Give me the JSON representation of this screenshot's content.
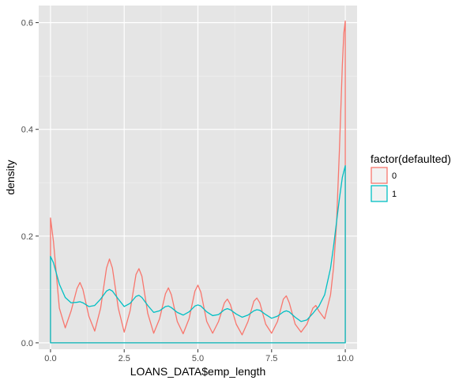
{
  "chart_data": {
    "type": "line",
    "chart_kind": "density",
    "title": "",
    "xlabel": "LOANS_DATA$emp_length",
    "ylabel": "density",
    "xlim": [
      -0.4,
      10.4
    ],
    "ylim": [
      -0.012,
      0.632
    ],
    "x_ticks": [
      0.0,
      2.5,
      5.0,
      7.5,
      10.0
    ],
    "x_tick_labels": [
      "0.0",
      "2.5",
      "5.0",
      "7.5",
      "10.0"
    ],
    "y_ticks": [
      0.0,
      0.2,
      0.4,
      0.6
    ],
    "y_tick_labels": [
      "0.0",
      "0.2",
      "0.4",
      "0.6"
    ],
    "grid": true,
    "panel_background": "#e5e5e5",
    "legend": {
      "title": "factor(defaulted)",
      "position": "right",
      "entries": [
        "0",
        "1"
      ]
    },
    "series": [
      {
        "name": "0",
        "color": "#f8766d",
        "x": [
          0.0,
          0.1,
          0.3,
          0.5,
          0.7,
          0.9,
          1.0,
          1.1,
          1.3,
          1.5,
          1.7,
          1.9,
          2.0,
          2.1,
          2.3,
          2.5,
          2.7,
          2.9,
          3.0,
          3.1,
          3.3,
          3.5,
          3.7,
          3.9,
          4.0,
          4.1,
          4.3,
          4.5,
          4.7,
          4.9,
          5.0,
          5.1,
          5.3,
          5.5,
          5.7,
          5.9,
          6.0,
          6.1,
          6.3,
          6.5,
          6.7,
          6.9,
          7.0,
          7.1,
          7.3,
          7.5,
          7.7,
          7.9,
          8.0,
          8.1,
          8.3,
          8.5,
          8.7,
          8.9,
          9.0,
          9.1,
          9.3,
          9.5,
          9.6,
          9.7,
          9.8,
          9.85,
          9.9,
          9.95,
          10.0
        ],
        "y": [
          0.234,
          0.19,
          0.065,
          0.028,
          0.06,
          0.102,
          0.113,
          0.1,
          0.05,
          0.022,
          0.065,
          0.14,
          0.157,
          0.14,
          0.065,
          0.02,
          0.06,
          0.128,
          0.139,
          0.125,
          0.055,
          0.018,
          0.045,
          0.092,
          0.103,
          0.09,
          0.04,
          0.017,
          0.045,
          0.097,
          0.108,
          0.095,
          0.04,
          0.018,
          0.04,
          0.075,
          0.082,
          0.072,
          0.035,
          0.015,
          0.04,
          0.078,
          0.084,
          0.075,
          0.035,
          0.018,
          0.04,
          0.082,
          0.088,
          0.075,
          0.035,
          0.02,
          0.035,
          0.065,
          0.07,
          0.06,
          0.045,
          0.09,
          0.14,
          0.22,
          0.36,
          0.44,
          0.52,
          0.58,
          0.603
        ]
      },
      {
        "name": "1",
        "color": "#00bfc4",
        "x": [
          0.0,
          0.1,
          0.3,
          0.5,
          0.7,
          0.9,
          1.0,
          1.1,
          1.3,
          1.5,
          1.7,
          1.9,
          2.0,
          2.1,
          2.3,
          2.5,
          2.7,
          2.9,
          3.0,
          3.1,
          3.3,
          3.5,
          3.7,
          3.9,
          4.0,
          4.1,
          4.3,
          4.5,
          4.7,
          4.9,
          5.0,
          5.1,
          5.3,
          5.5,
          5.7,
          5.9,
          6.0,
          6.1,
          6.3,
          6.5,
          6.7,
          6.9,
          7.0,
          7.1,
          7.3,
          7.5,
          7.7,
          7.9,
          8.0,
          8.1,
          8.3,
          8.5,
          8.7,
          8.9,
          9.0,
          9.1,
          9.3,
          9.5,
          9.6,
          9.7,
          9.8,
          9.9,
          10.0
        ],
        "y": [
          0.162,
          0.15,
          0.11,
          0.085,
          0.075,
          0.076,
          0.077,
          0.075,
          0.068,
          0.07,
          0.082,
          0.097,
          0.1,
          0.097,
          0.082,
          0.068,
          0.074,
          0.087,
          0.089,
          0.085,
          0.07,
          0.057,
          0.06,
          0.068,
          0.069,
          0.066,
          0.057,
          0.052,
          0.058,
          0.069,
          0.071,
          0.069,
          0.058,
          0.051,
          0.053,
          0.062,
          0.064,
          0.062,
          0.054,
          0.048,
          0.052,
          0.06,
          0.062,
          0.061,
          0.053,
          0.046,
          0.05,
          0.058,
          0.06,
          0.058,
          0.048,
          0.04,
          0.043,
          0.055,
          0.062,
          0.068,
          0.09,
          0.14,
          0.18,
          0.225,
          0.27,
          0.31,
          0.332
        ]
      }
    ]
  }
}
